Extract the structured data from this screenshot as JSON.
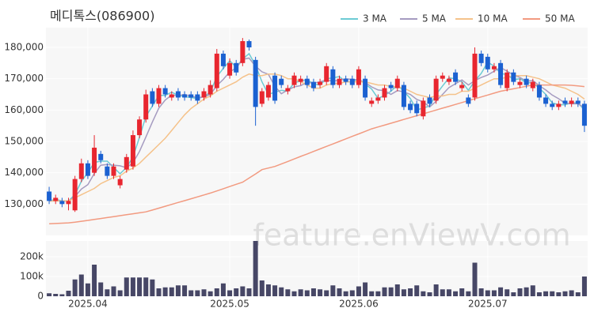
{
  "chart_data": {
    "type": "candlestick",
    "title": "메디톡스(086900)",
    "watermark": "feature.enViewV.com",
    "categories": [
      null,
      null,
      null,
      null,
      null,
      null,
      "2025.04",
      null,
      null,
      null,
      null,
      null,
      null,
      null,
      null,
      null,
      null,
      null,
      null,
      null,
      null,
      null,
      null,
      null,
      null,
      null,
      null,
      null,
      "2025.05",
      null,
      null,
      null,
      null,
      null,
      null,
      null,
      null,
      null,
      null,
      null,
      null,
      null,
      null,
      null,
      null,
      null,
      null,
      null,
      "2025.06",
      null,
      null,
      null,
      null,
      null,
      null,
      null,
      null,
      null,
      null,
      null,
      null,
      null,
      null,
      null,
      null,
      null,
      null,
      null,
      "2025.07",
      null,
      null,
      null,
      null,
      null,
      null,
      null,
      null,
      null,
      null,
      null,
      null,
      null,
      null,
      null
    ],
    "ylim": [
      120000,
      186300
    ],
    "yticks": [
      {
        "value": 130000,
        "label": "130,000"
      },
      {
        "value": 140000,
        "label": "140,000"
      },
      {
        "value": 150000,
        "label": "150,000"
      },
      {
        "value": 160000,
        "label": "160,000"
      },
      {
        "value": 170000,
        "label": "170,000"
      },
      {
        "value": 180000,
        "label": "180,000"
      }
    ],
    "grid": true,
    "up_color": "#e8262f",
    "down_color": "#1b61d1",
    "ohlc": {
      "open": [
        134000,
        131000,
        131000,
        130000,
        128000,
        138000,
        143000,
        140000,
        146000,
        142000,
        139000,
        136000,
        141000,
        142000,
        152000,
        157000,
        166000,
        162000,
        167000,
        164000,
        166000,
        165000,
        165000,
        165000,
        164000,
        165000,
        167000,
        178000,
        171000,
        175000,
        175000,
        182000,
        176000,
        162000,
        164000,
        171000,
        170000,
        166000,
        168000,
        169000,
        170000,
        169000,
        168000,
        169000,
        173000,
        168000,
        170000,
        170000,
        168000,
        170000,
        162000,
        163000,
        164000,
        168000,
        167000,
        168000,
        162000,
        162000,
        158000,
        164000,
        163000,
        170000,
        169000,
        172000,
        167000,
        164000,
        164000,
        178000,
        177000,
        173000,
        175000,
        167000,
        172000,
        168000,
        170000,
        167000,
        168000,
        164000,
        162000,
        161000,
        163000,
        162000,
        163000,
        162000
      ],
      "high": [
        135500,
        133000,
        132000,
        132000,
        139000,
        144500,
        144000,
        152000,
        147000,
        143000,
        143000,
        139000,
        146000,
        153500,
        158000,
        166500,
        167000,
        168000,
        168000,
        166000,
        167000,
        166000,
        166000,
        166000,
        167000,
        169500,
        179500,
        179000,
        176500,
        176000,
        183000,
        182500,
        177000,
        167000,
        169000,
        172000,
        171000,
        168000,
        172000,
        171000,
        171000,
        170000,
        170000,
        175000,
        174000,
        171000,
        171000,
        171000,
        174000,
        171000,
        164000,
        165000,
        168000,
        169000,
        171000,
        169000,
        163000,
        163000,
        164000,
        165000,
        171000,
        172000,
        171000,
        173000,
        169000,
        165000,
        180000,
        179000,
        178000,
        175000,
        176000,
        173000,
        173000,
        170000,
        171000,
        170000,
        169000,
        165000,
        163000,
        163000,
        164000,
        164000,
        164000,
        163000
      ],
      "low": [
        130000,
        130000,
        129000,
        128000,
        127500,
        137000,
        138000,
        139000,
        143000,
        138000,
        138000,
        135000,
        140000,
        141000,
        151000,
        156000,
        161000,
        161000,
        164000,
        163000,
        163000,
        163000,
        163000,
        162000,
        163000,
        164000,
        166000,
        173000,
        170000,
        171000,
        174000,
        179000,
        155000,
        161000,
        163000,
        162000,
        167000,
        165000,
        167000,
        168000,
        167000,
        166000,
        167000,
        168000,
        167000,
        167000,
        168000,
        167000,
        167000,
        163000,
        161000,
        162000,
        163000,
        166000,
        166000,
        160000,
        159000,
        158000,
        157000,
        161000,
        162000,
        169000,
        168000,
        168000,
        166000,
        161000,
        163000,
        174000,
        172000,
        172000,
        167000,
        166000,
        168000,
        167000,
        167000,
        166000,
        163000,
        161000,
        160000,
        160000,
        161000,
        161000,
        161000,
        153000
      ],
      "close": [
        131000,
        132000,
        130000,
        131000,
        138000,
        143000,
        139000,
        148000,
        144000,
        139000,
        142000,
        138000,
        145000,
        152000,
        157000,
        165000,
        162000,
        167000,
        165000,
        165000,
        164000,
        164000,
        164000,
        163000,
        166000,
        168000,
        178000,
        174000,
        175000,
        172000,
        182000,
        180000,
        161000,
        166000,
        168000,
        163000,
        168000,
        167000,
        171000,
        170000,
        168000,
        167000,
        169000,
        174000,
        168000,
        170000,
        169000,
        168000,
        173000,
        164000,
        163000,
        164000,
        167000,
        167000,
        170000,
        161000,
        160000,
        159000,
        163000,
        162000,
        170000,
        171000,
        170000,
        169000,
        168000,
        162000,
        178000,
        175000,
        173000,
        174000,
        168000,
        172000,
        169000,
        169000,
        168000,
        169000,
        164000,
        162000,
        161000,
        162000,
        162000,
        163000,
        162000,
        155000
      ]
    },
    "series": [
      {
        "name": "3 MA",
        "color": "#6ccbd4",
        "values": [
          131000,
          131500,
          131000,
          131000,
          133000,
          137300,
          140000,
          143300,
          143700,
          143700,
          141700,
          139700,
          141700,
          145000,
          151300,
          158000,
          161300,
          164700,
          164700,
          165700,
          164700,
          164300,
          164000,
          163700,
          164300,
          165700,
          170700,
          173300,
          175700,
          173700,
          176300,
          178000,
          174300,
          169000,
          165000,
          165700,
          166300,
          166000,
          168700,
          169300,
          169700,
          168300,
          168000,
          170000,
          170300,
          170700,
          169000,
          169000,
          170000,
          168300,
          166700,
          163700,
          164700,
          166000,
          168000,
          166000,
          163700,
          160000,
          160700,
          161300,
          165000,
          167700,
          170300,
          170000,
          169000,
          166300,
          169300,
          171700,
          175300,
          174000,
          171700,
          171300,
          169700,
          170000,
          168700,
          168700,
          167000,
          165000,
          162300,
          161700,
          161700,
          162300,
          162300,
          160000
        ]
      },
      {
        "name": "5 MA",
        "color": "#a59bc0",
        "values": [
          131000,
          131000,
          131000,
          131000,
          132400,
          134800,
          136200,
          139800,
          142400,
          142600,
          142400,
          142200,
          141600,
          143200,
          146800,
          151400,
          156200,
          160600,
          163200,
          164800,
          164600,
          165000,
          164400,
          164000,
          164200,
          165000,
          167800,
          169800,
          172200,
          173400,
          176200,
          176600,
          174000,
          172200,
          171400,
          167600,
          165200,
          166400,
          167400,
          167800,
          168800,
          168600,
          169000,
          169600,
          169200,
          169600,
          170000,
          169800,
          169600,
          168800,
          167400,
          166400,
          166200,
          165000,
          166200,
          165800,
          165000,
          163400,
          162600,
          161000,
          162800,
          165000,
          167200,
          168400,
          169600,
          168000,
          169400,
          170400,
          171200,
          172400,
          173600,
          172400,
          171200,
          170400,
          169200,
          169400,
          167800,
          166400,
          164800,
          163600,
          162200,
          162000,
          162000,
          160800
        ]
      },
      {
        "name": "10 MA",
        "color": "#f5c28a",
        "values": [
          131000,
          131000,
          131000,
          131000,
          132000,
          133000,
          134000,
          135000,
          136500,
          137500,
          138500,
          139000,
          140500,
          141500,
          143000,
          145000,
          147000,
          149000,
          151000,
          153500,
          156000,
          158500,
          160500,
          162000,
          163500,
          164500,
          166000,
          167000,
          168000,
          169000,
          170500,
          171500,
          171000,
          171000,
          171500,
          171500,
          171000,
          170000,
          170000,
          169000,
          168000,
          167000,
          167000,
          168000,
          168500,
          168500,
          169000,
          169000,
          169000,
          169000,
          168500,
          168000,
          168000,
          167500,
          167500,
          167000,
          166000,
          165000,
          164500,
          164000,
          164500,
          164500,
          165000,
          165000,
          166000,
          166000,
          167000,
          168000,
          169000,
          170000,
          170000,
          170500,
          171000,
          171000,
          171000,
          170500,
          170000,
          169000,
          168000,
          167500,
          167000,
          166000,
          165000,
          163500
        ]
      },
      {
        "name": "50 MA",
        "color": "#f29a80",
        "values": [
          123700,
          123800,
          123900,
          124000,
          124200,
          124500,
          124800,
          125100,
          125400,
          125700,
          126000,
          126300,
          126600,
          126900,
          127200,
          127500,
          128100,
          128700,
          129300,
          129900,
          130500,
          131100,
          131700,
          132300,
          132900,
          133500,
          134200,
          134900,
          135600,
          136300,
          137000,
          138300,
          139600,
          141000,
          141500,
          142000,
          142800,
          143600,
          144400,
          145200,
          146000,
          146800,
          147600,
          148400,
          149200,
          150000,
          150800,
          151600,
          152400,
          153200,
          154000,
          154600,
          155200,
          155800,
          156400,
          157000,
          157600,
          158200,
          158800,
          159400,
          160000,
          160600,
          161200,
          161800,
          162400,
          163000,
          163600,
          164200,
          164800,
          165400,
          166000,
          166400,
          166800,
          167200,
          167600,
          168000,
          168000,
          168000,
          168000,
          168000,
          168000,
          167900,
          167700,
          167500
        ]
      }
    ],
    "volume": {
      "color": "#474766",
      "ylim": [
        0,
        280000
      ],
      "yticks": [
        0,
        {
          "value": 100000,
          "label": "100k"
        },
        {
          "value": 200000,
          "label": "200k"
        }
      ],
      "values": [
        15000,
        12000,
        10000,
        28000,
        85000,
        110000,
        65000,
        160000,
        70000,
        35000,
        50000,
        30000,
        95000,
        95000,
        95000,
        95000,
        85000,
        40000,
        45000,
        45000,
        55000,
        55000,
        30000,
        30000,
        35000,
        25000,
        40000,
        65000,
        30000,
        40000,
        50000,
        40000,
        280000,
        80000,
        60000,
        55000,
        45000,
        35000,
        25000,
        35000,
        30000,
        40000,
        35000,
        30000,
        55000,
        40000,
        25000,
        30000,
        50000,
        70000,
        25000,
        25000,
        45000,
        45000,
        60000,
        35000,
        40000,
        55000,
        25000,
        20000,
        60000,
        35000,
        35000,
        25000,
        40000,
        25000,
        170000,
        40000,
        30000,
        30000,
        45000,
        35000,
        20000,
        40000,
        45000,
        55000,
        20000,
        25000,
        25000,
        20000,
        25000,
        30000,
        20000,
        100000
      ]
    }
  }
}
